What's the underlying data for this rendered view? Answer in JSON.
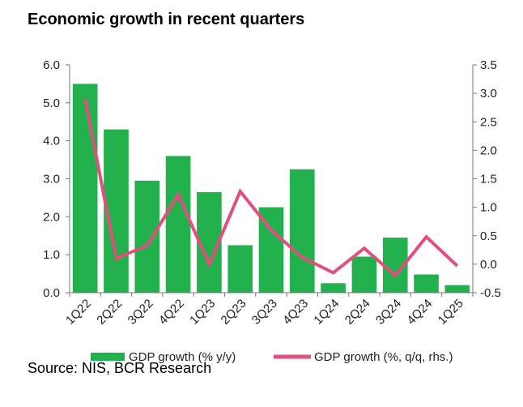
{
  "title": "Economic growth in recent quarters",
  "source": "Source: NIS, BCR Research",
  "chart_data": {
    "type": "bar",
    "title": "Economic growth in recent quarters",
    "categories": [
      "1Q22",
      "2Q22",
      "3Q22",
      "4Q22",
      "1Q23",
      "2Q23",
      "3Q23",
      "4Q23",
      "1Q24",
      "2Q24",
      "3Q24",
      "4Q24",
      "1Q25"
    ],
    "series": [
      {
        "name": "GDP growth (% y/y)",
        "type": "bar",
        "axis": "left",
        "color": "#22b14c",
        "values": [
          5.5,
          4.3,
          2.95,
          3.6,
          2.65,
          1.25,
          2.25,
          3.25,
          0.25,
          0.95,
          1.45,
          0.48,
          0.2
        ]
      },
      {
        "name": "GDP growth (%, q/q, rhs.)",
        "type": "line",
        "axis": "right",
        "color": "#e0507f",
        "values": [
          2.9,
          0.1,
          0.33,
          1.22,
          0.0,
          1.28,
          0.6,
          0.12,
          -0.15,
          0.28,
          -0.2,
          0.48,
          -0.03
        ]
      }
    ],
    "y_left": {
      "lim": [
        0,
        6
      ],
      "ticks": [
        "0.0",
        "1.0",
        "2.0",
        "3.0",
        "4.0",
        "5.0",
        "6.0"
      ]
    },
    "y_right": {
      "lim": [
        -0.5,
        3.5
      ],
      "ticks": [
        "-0.5",
        "0.0",
        "0.5",
        "1.0",
        "1.5",
        "2.0",
        "2.5",
        "3.0",
        "3.5"
      ]
    },
    "grid": false,
    "legend_position": "bottom"
  }
}
